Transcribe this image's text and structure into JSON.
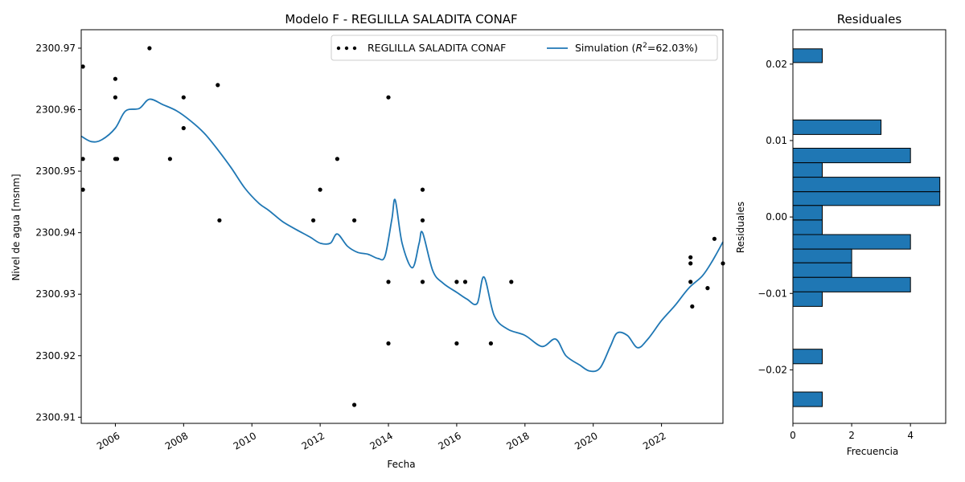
{
  "chart_data": [
    {
      "type": "scatter+line",
      "title": "Modelo F - REGLILLA SALADITA CONAF",
      "xlabel": "Fecha",
      "ylabel": "Nivel de agua [msnm]",
      "xlim": [
        2005.0,
        2023.8
      ],
      "ylim": [
        2300.909,
        2300.973
      ],
      "x_ticks": [
        2006,
        2008,
        2010,
        2012,
        2014,
        2016,
        2018,
        2020,
        2022
      ],
      "y_ticks": [
        2300.91,
        2300.92,
        2300.93,
        2300.94,
        2300.95,
        2300.96,
        2300.97
      ],
      "legend": {
        "placement": "upper right",
        "observed_label": "REGLILLA SALADITA CONAF",
        "sim_prefix": "Simulation (",
        "sim_r": "R",
        "sim_sup": "2",
        "sim_suffix": "=62.03%)"
      },
      "series": [
        {
          "name": "REGLILLA SALADITA CONAF",
          "kind": "scatter",
          "color": "#000000",
          "points": [
            [
              2005.05,
              2300.967
            ],
            [
              2005.05,
              2300.952
            ],
            [
              2005.05,
              2300.947
            ],
            [
              2006.0,
              2300.965
            ],
            [
              2006.0,
              2300.962
            ],
            [
              2006.0,
              2300.952
            ],
            [
              2006.05,
              2300.952
            ],
            [
              2007.0,
              2300.97
            ],
            [
              2007.6,
              2300.952
            ],
            [
              2008.0,
              2300.962
            ],
            [
              2008.0,
              2300.957
            ],
            [
              2009.0,
              2300.964
            ],
            [
              2009.05,
              2300.942
            ],
            [
              2011.8,
              2300.942
            ],
            [
              2012.0,
              2300.947
            ],
            [
              2012.5,
              2300.952
            ],
            [
              2013.0,
              2300.942
            ],
            [
              2013.0,
              2300.912
            ],
            [
              2014.0,
              2300.962
            ],
            [
              2014.0,
              2300.932
            ],
            [
              2014.0,
              2300.922
            ],
            [
              2015.0,
              2300.947
            ],
            [
              2015.0,
              2300.942
            ],
            [
              2015.0,
              2300.932
            ],
            [
              2016.0,
              2300.932
            ],
            [
              2016.0,
              2300.922
            ],
            [
              2016.25,
              2300.932
            ],
            [
              2017.0,
              2300.922
            ],
            [
              2017.6,
              2300.932
            ],
            [
              2022.85,
              2300.936
            ],
            [
              2022.85,
              2300.935
            ],
            [
              2022.85,
              2300.932
            ],
            [
              2022.9,
              2300.928
            ],
            [
              2023.35,
              2300.931
            ],
            [
              2023.55,
              2300.939
            ],
            [
              2023.8,
              2300.935
            ]
          ]
        },
        {
          "name": "Simulation",
          "kind": "line",
          "color": "#1f77b4",
          "points": [
            [
              2005.0,
              2300.9557
            ],
            [
              2005.3,
              2300.9548
            ],
            [
              2005.6,
              2300.9551
            ],
            [
              2006.0,
              2300.957
            ],
            [
              2006.3,
              2300.9598
            ],
            [
              2006.7,
              2300.9602
            ],
            [
              2007.0,
              2300.9617
            ],
            [
              2007.4,
              2300.9608
            ],
            [
              2007.8,
              2300.9598
            ],
            [
              2008.2,
              2300.9582
            ],
            [
              2008.6,
              2300.9562
            ],
            [
              2009.0,
              2300.9535
            ],
            [
              2009.4,
              2300.9505
            ],
            [
              2009.8,
              2300.9472
            ],
            [
              2010.2,
              2300.9448
            ],
            [
              2010.5,
              2300.9436
            ],
            [
              2010.9,
              2300.9418
            ],
            [
              2011.3,
              2300.9405
            ],
            [
              2011.7,
              2300.9393
            ],
            [
              2012.0,
              2300.9383
            ],
            [
              2012.3,
              2300.9383
            ],
            [
              2012.5,
              2300.9398
            ],
            [
              2012.8,
              2300.9378
            ],
            [
              2013.1,
              2300.9368
            ],
            [
              2013.4,
              2300.9365
            ],
            [
              2013.7,
              2300.9358
            ],
            [
              2013.9,
              2300.9362
            ],
            [
              2014.1,
              2300.9422
            ],
            [
              2014.2,
              2300.9453
            ],
            [
              2014.4,
              2300.9383
            ],
            [
              2014.7,
              2300.9343
            ],
            [
              2014.9,
              2300.9383
            ],
            [
              2015.0,
              2300.94
            ],
            [
              2015.3,
              2300.9338
            ],
            [
              2015.6,
              2300.9318
            ],
            [
              2016.0,
              2300.9303
            ],
            [
              2016.3,
              2300.9292
            ],
            [
              2016.6,
              2300.9285
            ],
            [
              2016.8,
              2300.9328
            ],
            [
              2017.1,
              2300.9265
            ],
            [
              2017.5,
              2300.9243
            ],
            [
              2018.0,
              2300.9233
            ],
            [
              2018.5,
              2300.9215
            ],
            [
              2018.9,
              2300.9227
            ],
            [
              2019.2,
              2300.92
            ],
            [
              2019.6,
              2300.9185
            ],
            [
              2019.9,
              2300.9175
            ],
            [
              2020.2,
              2300.918
            ],
            [
              2020.5,
              2300.9215
            ],
            [
              2020.7,
              2300.9237
            ],
            [
              2021.0,
              2300.9233
            ],
            [
              2021.3,
              2300.9213
            ],
            [
              2021.6,
              2300.9227
            ],
            [
              2022.0,
              2300.9257
            ],
            [
              2022.4,
              2300.9282
            ],
            [
              2022.8,
              2300.931
            ],
            [
              2023.2,
              2300.933
            ],
            [
              2023.5,
              2300.9355
            ],
            [
              2023.8,
              2300.9385
            ]
          ]
        }
      ]
    },
    {
      "type": "bar",
      "orientation": "horizontal",
      "title": "Residuales",
      "xlabel": "Frecuencia",
      "ylabel": "Residuales",
      "xlim": [
        0,
        5.2
      ],
      "ylim": [
        -0.027,
        0.0245
      ],
      "x_ticks": [
        0,
        2,
        4
      ],
      "y_ticks": [
        -0.02,
        -0.01,
        0.0,
        0.01,
        0.02
      ],
      "y_tick_labels": [
        "−0.02",
        "−0.01",
        "0.00",
        "0.01",
        "0.02"
      ],
      "bar_color": "#1f77b4",
      "bins": [
        {
          "from": 0.0202,
          "to": 0.022,
          "count": 1
        },
        {
          "from": 0.0108,
          "to": 0.0127,
          "count": 3
        },
        {
          "from": 0.0071,
          "to": 0.009,
          "count": 4
        },
        {
          "from": 0.0052,
          "to": 0.0071,
          "count": 1
        },
        {
          "from": 0.0033,
          "to": 0.0052,
          "count": 5
        },
        {
          "from": 0.0015,
          "to": 0.0033,
          "count": 5
        },
        {
          "from": -0.0004,
          "to": 0.0015,
          "count": 1
        },
        {
          "from": -0.0023,
          "to": -0.0004,
          "count": 1
        },
        {
          "from": -0.0042,
          "to": -0.0023,
          "count": 4
        },
        {
          "from": -0.006,
          "to": -0.0042,
          "count": 2
        },
        {
          "from": -0.0079,
          "to": -0.006,
          "count": 2
        },
        {
          "from": -0.0098,
          "to": -0.0079,
          "count": 4
        },
        {
          "from": -0.0117,
          "to": -0.0098,
          "count": 1
        },
        {
          "from": -0.0192,
          "to": -0.0173,
          "count": 1
        },
        {
          "from": -0.0248,
          "to": -0.0229,
          "count": 1
        }
      ]
    }
  ]
}
